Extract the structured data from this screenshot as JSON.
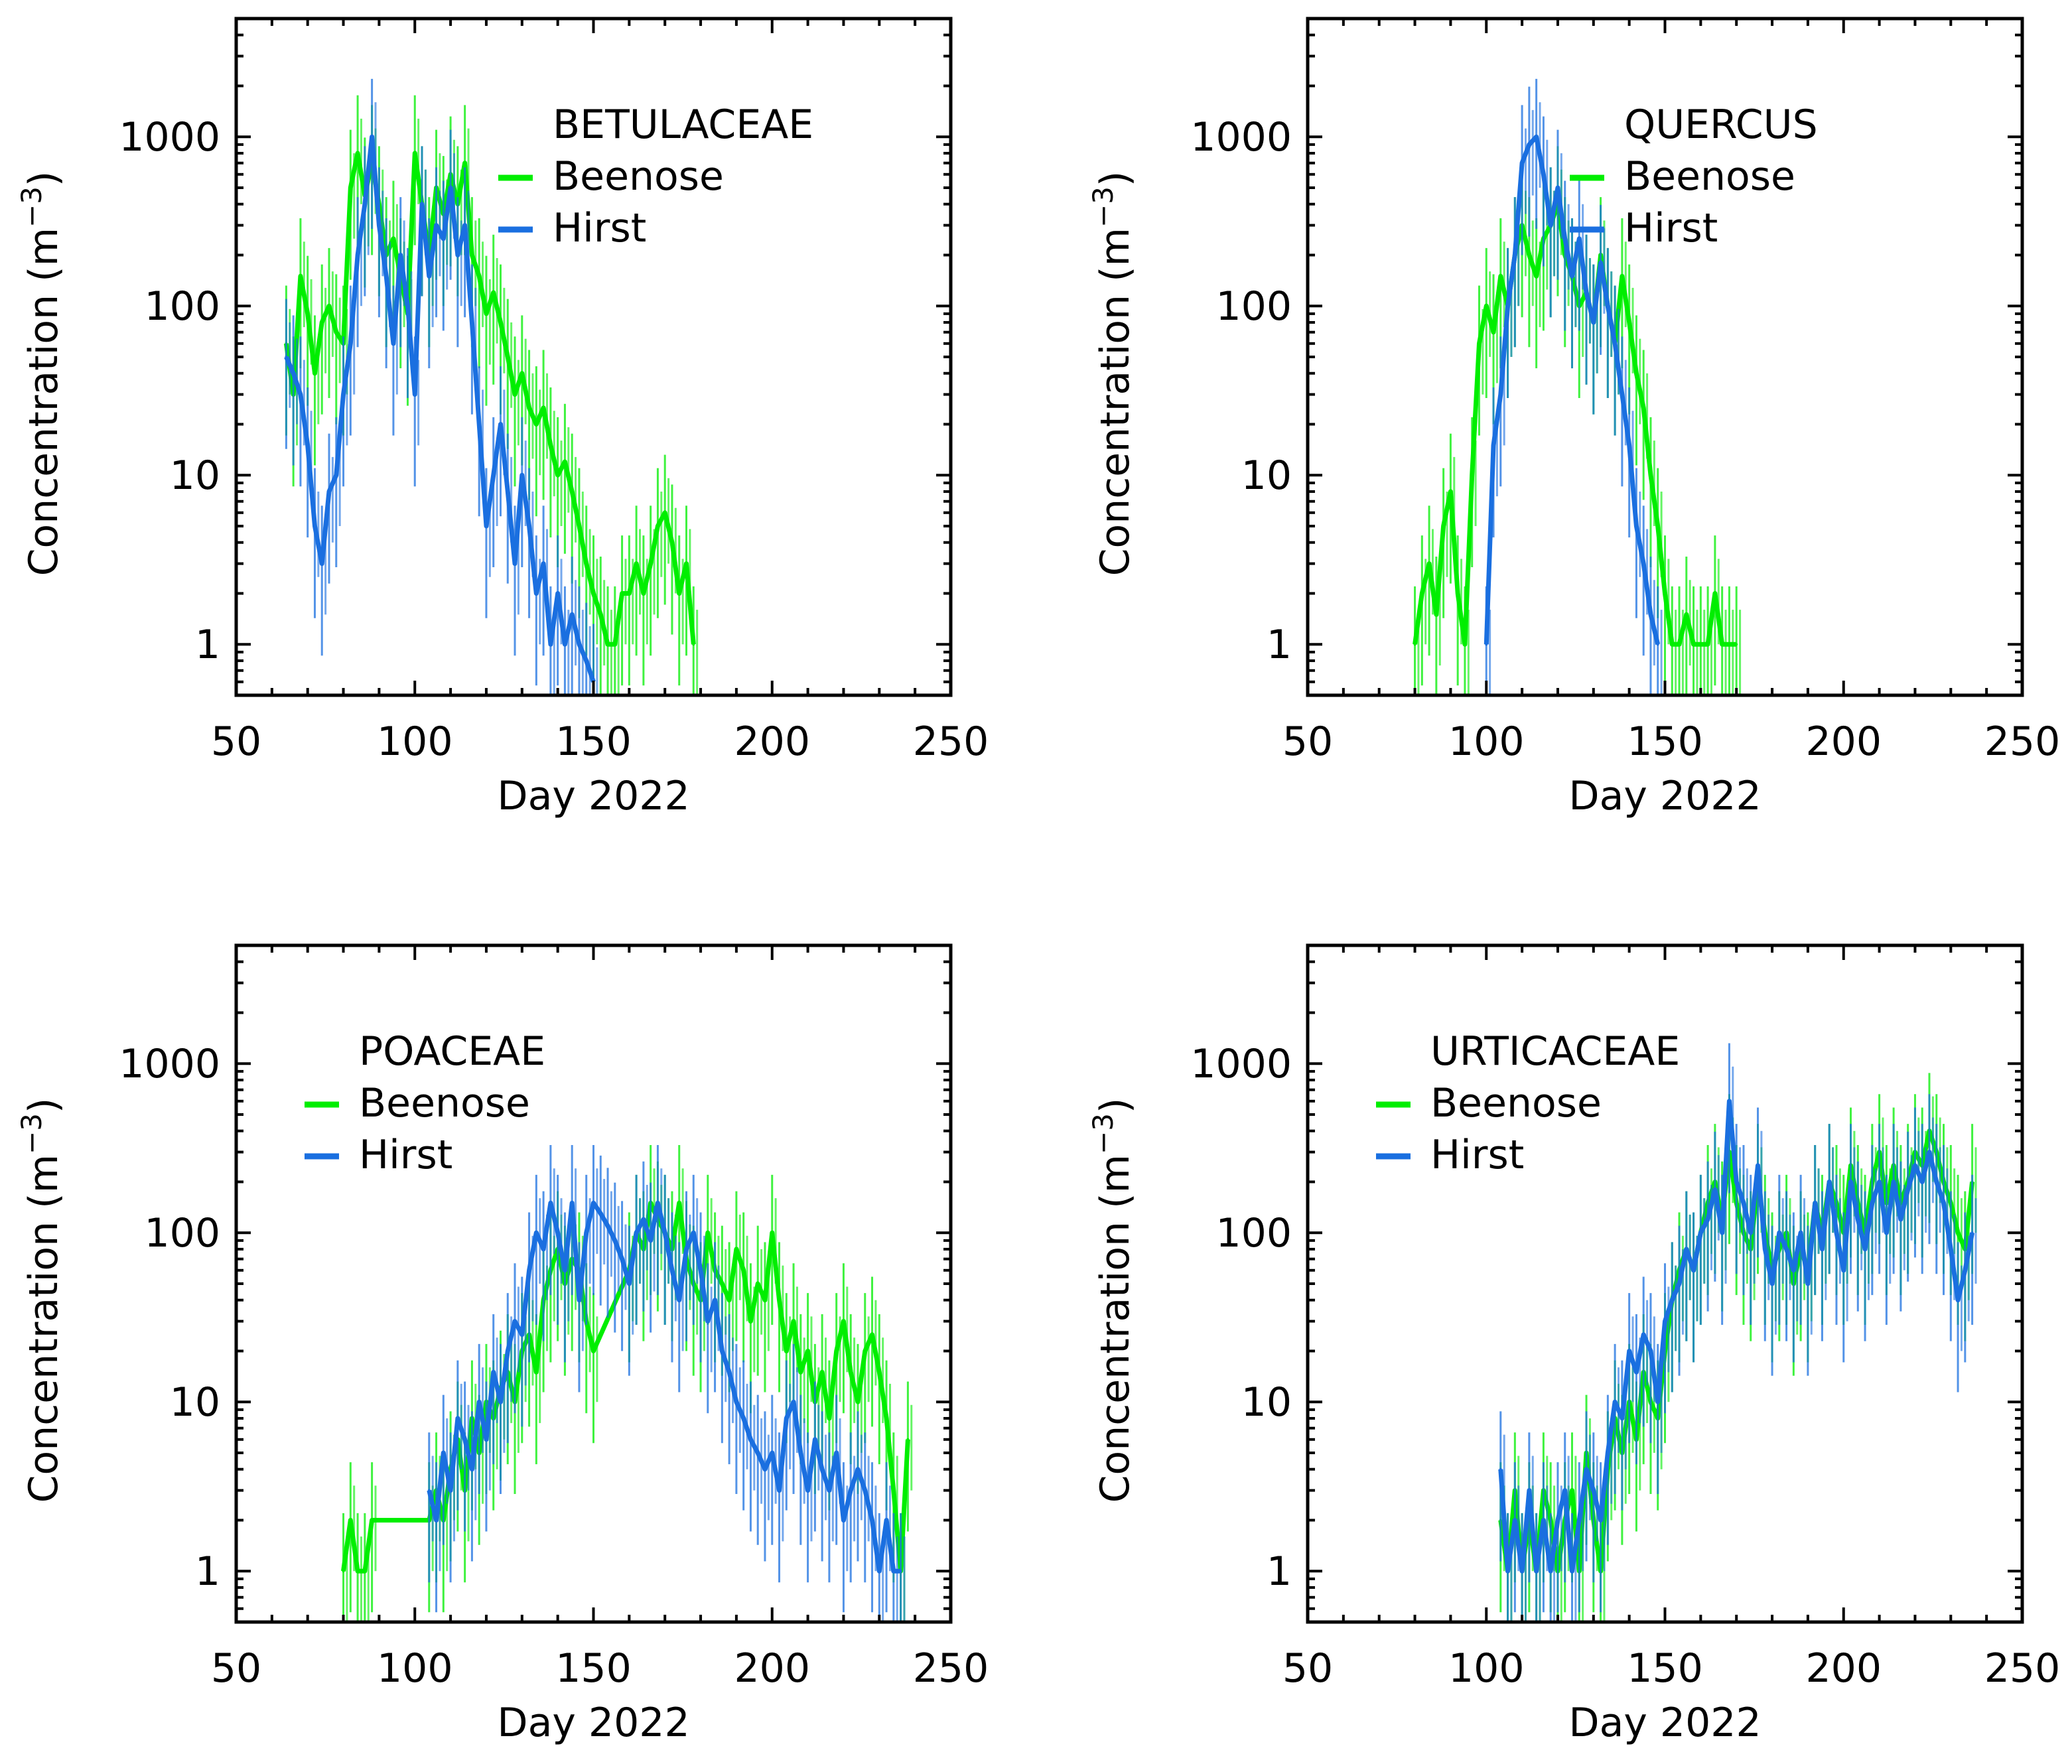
{
  "colors": {
    "beenose": "#00ee00",
    "hirst": "#1a6fe0",
    "axes": "#000000",
    "background": "#ffffff"
  },
  "chart_data": [
    {
      "type": "line",
      "title": "BETULACEAE",
      "xlabel": "Day 2022",
      "ylabel": "Concentration",
      "ylabel_unit": "(m",
      "ylabel_exp": "−3",
      "ylabel_close": ")",
      "yscale": "log",
      "xlim": [
        50,
        250
      ],
      "ylim": [
        0.5,
        5000
      ],
      "xticks": [
        50,
        100,
        150,
        200,
        250
      ],
      "xtick_labels": [
        "50",
        "100",
        "150",
        "200",
        "250"
      ],
      "yticks": [
        1,
        10,
        100,
        1000
      ],
      "ytick_labels": [
        "1",
        "10",
        "100",
        "1000"
      ],
      "legend": [
        "Beenose",
        "Hirst"
      ],
      "legend_position": "top-right",
      "series": [
        {
          "name": "Beenose",
          "x": [
            64,
            66,
            68,
            70,
            72,
            74,
            76,
            78,
            80,
            82,
            84,
            86,
            88,
            90,
            92,
            94,
            96,
            98,
            100,
            102,
            104,
            106,
            108,
            110,
            112,
            114,
            116,
            118,
            120,
            122,
            124,
            126,
            128,
            130,
            132,
            134,
            136,
            138,
            140,
            142,
            144,
            146,
            148,
            150,
            152,
            154,
            156,
            158,
            160,
            162,
            164,
            166,
            168,
            170,
            172,
            174,
            176,
            178
          ],
          "y": [
            60,
            30,
            150,
            90,
            40,
            80,
            100,
            70,
            60,
            500,
            800,
            450,
            700,
            400,
            200,
            250,
            150,
            90,
            800,
            400,
            200,
            500,
            350,
            600,
            400,
            700,
            200,
            150,
            90,
            120,
            80,
            50,
            30,
            40,
            25,
            20,
            25,
            15,
            10,
            12,
            8,
            5,
            3,
            2,
            1.5,
            1,
            1,
            2,
            2,
            3,
            2,
            3,
            5,
            6,
            4,
            2,
            3,
            1
          ]
        },
        {
          "name": "Hirst",
          "x": [
            64,
            66,
            68,
            70,
            72,
            74,
            76,
            78,
            80,
            82,
            84,
            86,
            88,
            90,
            92,
            94,
            96,
            98,
            100,
            102,
            104,
            106,
            108,
            110,
            112,
            114,
            116,
            118,
            120,
            122,
            124,
            126,
            128,
            130,
            132,
            134,
            136,
            138,
            140,
            142,
            144,
            146,
            148,
            150,
            152,
            154,
            156,
            158,
            160,
            162,
            164,
            166,
            168,
            170,
            172,
            174,
            176,
            178
          ],
          "y": [
            50,
            40,
            30,
            15,
            5,
            3,
            8,
            10,
            30,
            60,
            200,
            400,
            1000,
            300,
            150,
            60,
            200,
            100,
            30,
            400,
            150,
            300,
            250,
            500,
            200,
            300,
            80,
            20,
            5,
            10,
            20,
            8,
            3,
            10,
            5,
            2,
            3,
            1,
            2,
            1,
            1.5,
            1,
            0.8,
            0.6,
            null,
            null,
            null,
            null,
            null,
            null,
            null,
            null,
            null,
            null,
            null,
            null,
            null,
            null
          ]
        }
      ]
    },
    {
      "type": "line",
      "title": "QUERCUS",
      "xlabel": "Day 2022",
      "ylabel": "Concentration",
      "ylabel_unit": "(m",
      "ylabel_exp": "−3",
      "ylabel_close": ")",
      "yscale": "log",
      "xlim": [
        50,
        250
      ],
      "ylim": [
        0.5,
        5000
      ],
      "xticks": [
        50,
        100,
        150,
        200,
        250
      ],
      "xtick_labels": [
        "50",
        "100",
        "150",
        "200",
        "250"
      ],
      "yticks": [
        1,
        10,
        100,
        1000
      ],
      "ytick_labels": [
        "1",
        "10",
        "100",
        "1000"
      ],
      "legend": [
        "Beenose",
        "Hirst"
      ],
      "legend_position": "top-right",
      "series": [
        {
          "name": "Beenose",
          "x": [
            80,
            82,
            84,
            86,
            88,
            90,
            92,
            94,
            96,
            98,
            100,
            102,
            104,
            106,
            108,
            110,
            112,
            114,
            116,
            118,
            120,
            122,
            124,
            126,
            128,
            130,
            132,
            134,
            136,
            138,
            140,
            142,
            144,
            146,
            148,
            150,
            152,
            154,
            156,
            158,
            160,
            162,
            164,
            166,
            168,
            170
          ],
          "y": [
            1,
            2,
            3,
            1.5,
            5,
            8,
            2,
            1,
            10,
            60,
            100,
            70,
            150,
            100,
            200,
            300,
            200,
            150,
            250,
            300,
            400,
            200,
            150,
            100,
            120,
            80,
            200,
            100,
            60,
            150,
            80,
            40,
            25,
            10,
            5,
            2,
            1,
            1,
            1.5,
            1,
            1,
            1,
            2,
            1,
            1,
            1
          ]
        },
        {
          "name": "Hirst",
          "x": [
            100,
            102,
            104,
            106,
            108,
            110,
            112,
            114,
            116,
            118,
            120,
            122,
            124,
            126,
            128,
            130,
            132,
            134,
            136,
            138,
            140,
            142,
            144,
            146,
            148
          ],
          "y": [
            1,
            15,
            30,
            100,
            200,
            700,
            900,
            1000,
            600,
            300,
            500,
            250,
            150,
            250,
            120,
            80,
            180,
            100,
            60,
            30,
            15,
            5,
            3,
            1.5,
            1
          ]
        }
      ]
    },
    {
      "type": "line",
      "title": "POACEAE",
      "xlabel": "Day 2022",
      "ylabel": "Concentration",
      "ylabel_unit": "(m",
      "ylabel_exp": "−3",
      "ylabel_close": ")",
      "yscale": "log",
      "xlim": [
        50,
        250
      ],
      "ylim": [
        0.5,
        5000
      ],
      "xticks": [
        50,
        100,
        150,
        200,
        250
      ],
      "xtick_labels": [
        "50",
        "100",
        "150",
        "200",
        "250"
      ],
      "yticks": [
        1,
        10,
        100,
        1000
      ],
      "ytick_labels": [
        "1",
        "10",
        "100",
        "1000"
      ],
      "legend": [
        "Beenose",
        "Hirst"
      ],
      "legend_position": "top-left",
      "series": [
        {
          "name": "Beenose",
          "x": [
            80,
            82,
            84,
            86,
            88,
            104,
            106,
            108,
            110,
            112,
            114,
            116,
            118,
            120,
            122,
            124,
            126,
            128,
            130,
            132,
            134,
            136,
            138,
            140,
            142,
            144,
            146,
            148,
            150,
            160,
            162,
            164,
            166,
            168,
            170,
            172,
            174,
            176,
            178,
            180,
            182,
            184,
            186,
            188,
            190,
            192,
            194,
            196,
            198,
            200,
            202,
            204,
            206,
            208,
            210,
            212,
            214,
            216,
            218,
            220,
            222,
            224,
            226,
            228,
            230,
            232,
            234,
            236,
            238
          ],
          "y": [
            1,
            2,
            1,
            1,
            2,
            2,
            3,
            2,
            4,
            6,
            3,
            8,
            5,
            10,
            8,
            12,
            15,
            10,
            20,
            25,
            15,
            40,
            60,
            80,
            50,
            70,
            60,
            30,
            20,
            60,
            100,
            80,
            150,
            120,
            100,
            80,
            150,
            70,
            50,
            40,
            100,
            60,
            50,
            40,
            80,
            60,
            30,
            50,
            40,
            100,
            40,
            20,
            30,
            15,
            20,
            10,
            15,
            8,
            20,
            30,
            15,
            10,
            20,
            25,
            15,
            8,
            3,
            1,
            6
          ]
        },
        {
          "name": "Hirst",
          "x": [
            104,
            106,
            108,
            110,
            112,
            114,
            116,
            118,
            120,
            122,
            124,
            126,
            128,
            130,
            132,
            134,
            136,
            138,
            140,
            142,
            144,
            146,
            148,
            150,
            152,
            154,
            156,
            158,
            160,
            162,
            164,
            166,
            168,
            170,
            172,
            174,
            176,
            178,
            180,
            182,
            184,
            186,
            188,
            190,
            192,
            194,
            196,
            198,
            200,
            202,
            204,
            206,
            208,
            210,
            212,
            214,
            216,
            218,
            220,
            222,
            224,
            226,
            228,
            230,
            232,
            234,
            236
          ],
          "y": [
            3,
            2,
            5,
            3,
            8,
            6,
            4,
            10,
            6,
            15,
            10,
            20,
            30,
            25,
            60,
            100,
            80,
            150,
            100,
            60,
            150,
            40,
            100,
            150,
            130,
            110,
            90,
            70,
            50,
            100,
            120,
            90,
            150,
            100,
            60,
            40,
            80,
            100,
            60,
            30,
            40,
            20,
            15,
            10,
            8,
            6,
            5,
            4,
            5,
            3,
            8,
            10,
            5,
            3,
            6,
            4,
            3,
            5,
            2,
            3,
            4,
            3,
            2,
            1,
            2,
            1,
            1
          ]
        }
      ]
    },
    {
      "type": "line",
      "title": "URTICACEAE",
      "xlabel": "Day 2022",
      "ylabel": "Concentration",
      "ylabel_unit": "(m",
      "ylabel_exp": "−3",
      "ylabel_close": ")",
      "yscale": "log",
      "xlim": [
        50,
        250
      ],
      "ylim": [
        0.5,
        5000
      ],
      "xticks": [
        50,
        100,
        150,
        200,
        250
      ],
      "xtick_labels": [
        "50",
        "100",
        "150",
        "200",
        "250"
      ],
      "yticks": [
        1,
        10,
        100,
        1000
      ],
      "ytick_labels": [
        "1",
        "10",
        "100",
        "1000"
      ],
      "legend": [
        "Beenose",
        "Hirst"
      ],
      "legend_position": "top-left",
      "series": [
        {
          "name": "Beenose",
          "x": [
            104,
            106,
            108,
            110,
            112,
            114,
            116,
            118,
            120,
            122,
            124,
            126,
            128,
            130,
            132,
            134,
            136,
            138,
            140,
            142,
            144,
            146,
            148,
            150,
            152,
            154,
            156,
            158,
            160,
            162,
            164,
            166,
            168,
            170,
            172,
            174,
            176,
            178,
            180,
            182,
            184,
            186,
            188,
            190,
            192,
            194,
            196,
            198,
            200,
            202,
            204,
            206,
            208,
            210,
            212,
            214,
            216,
            218,
            220,
            222,
            224,
            226,
            228,
            230,
            232,
            234,
            236
          ],
          "y": [
            2,
            1,
            3,
            1,
            2,
            1,
            3,
            2,
            1,
            2,
            3,
            1,
            5,
            2,
            1,
            4,
            8,
            5,
            10,
            6,
            15,
            10,
            8,
            20,
            40,
            60,
            80,
            60,
            100,
            150,
            200,
            120,
            300,
            150,
            100,
            80,
            200,
            100,
            60,
            80,
            100,
            50,
            80,
            60,
            150,
            100,
            200,
            150,
            100,
            250,
            150,
            100,
            200,
            300,
            150,
            250,
            150,
            200,
            300,
            250,
            400,
            300,
            200,
            150,
            100,
            80,
            200
          ]
        },
        {
          "name": "Hirst",
          "x": [
            104,
            106,
            108,
            110,
            112,
            114,
            116,
            118,
            120,
            122,
            124,
            126,
            128,
            130,
            132,
            134,
            136,
            138,
            140,
            142,
            144,
            146,
            148,
            150,
            152,
            154,
            156,
            158,
            160,
            162,
            164,
            166,
            168,
            170,
            172,
            174,
            176,
            178,
            180,
            182,
            184,
            186,
            188,
            190,
            192,
            194,
            196,
            198,
            200,
            202,
            204,
            206,
            208,
            210,
            212,
            214,
            216,
            218,
            220,
            222,
            224,
            226,
            228,
            230,
            232,
            234,
            236
          ],
          "y": [
            4,
            1,
            2,
            1,
            3,
            1,
            2,
            1,
            2,
            3,
            1,
            2,
            4,
            3,
            2,
            5,
            10,
            8,
            20,
            15,
            25,
            20,
            10,
            30,
            40,
            50,
            80,
            60,
            100,
            120,
            180,
            100,
            600,
            200,
            150,
            100,
            250,
            80,
            50,
            100,
            80,
            60,
            100,
            50,
            150,
            80,
            200,
            100,
            60,
            200,
            120,
            80,
            150,
            200,
            100,
            200,
            120,
            180,
            250,
            200,
            300,
            200,
            150,
            80,
            40,
            60,
            100
          ]
        }
      ]
    }
  ]
}
